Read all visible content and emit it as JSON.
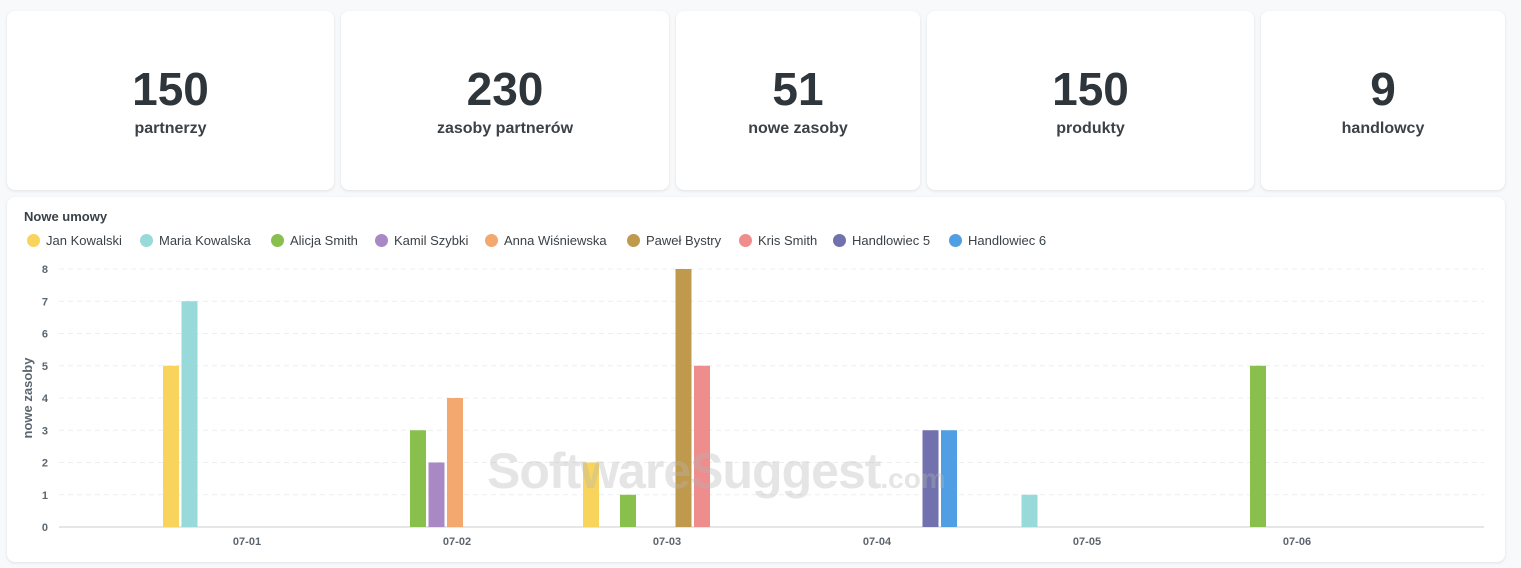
{
  "stats": [
    {
      "value": "150",
      "label": "partnerzy"
    },
    {
      "value": "230",
      "label": "zasoby partnerów"
    },
    {
      "value": "51",
      "label": "nowe zasoby"
    },
    {
      "value": "150",
      "label": "produkty"
    },
    {
      "value": "9",
      "label": "handlowcy"
    }
  ],
  "watermark": {
    "main": "SoftwareSuggest",
    "suffix": ".com"
  },
  "chart_data": {
    "type": "bar",
    "title": "Nowe umowy",
    "xlabel": "",
    "ylabel": "nowe zasoby",
    "ylim": [
      0,
      8
    ],
    "yticks": [
      "0",
      "1",
      "2",
      "3",
      "4",
      "5",
      "6",
      "7",
      "8"
    ],
    "grid": true,
    "legend_position": "top-left",
    "categories": [
      "07-01",
      "07-02",
      "07-03",
      "07-04",
      "07-05",
      "07-06"
    ],
    "series": [
      {
        "name": "Jan Kowalski",
        "color": "#f9d45c",
        "values": [
          5,
          0,
          2,
          0,
          0,
          0
        ]
      },
      {
        "name": "Maria Kowalska",
        "color": "#98d9d9",
        "values": [
          7,
          0,
          0,
          0,
          1,
          0
        ]
      },
      {
        "name": "Alicja Smith",
        "color": "#88bf4d",
        "values": [
          0,
          3,
          1,
          0,
          0,
          5
        ]
      },
      {
        "name": "Kamil Szybki",
        "color": "#a989c5",
        "values": [
          0,
          2,
          0,
          0,
          0,
          0
        ]
      },
      {
        "name": "Anna Wiśniewska",
        "color": "#f2a86f",
        "values": [
          0,
          4,
          0,
          0,
          0,
          0
        ]
      },
      {
        "name": "Paweł Bystry",
        "color": "#c09a4c",
        "values": [
          0,
          0,
          8,
          0,
          0,
          0
        ]
      },
      {
        "name": "Kris Smith",
        "color": "#ef8c8c",
        "values": [
          0,
          0,
          5,
          0,
          0,
          0
        ]
      },
      {
        "name": "Handlowiec 5",
        "color": "#7172ad",
        "values": [
          0,
          0,
          0,
          3,
          0,
          0
        ]
      },
      {
        "name": "Handlowiec 6",
        "color": "#509ee3",
        "values": [
          0,
          0,
          0,
          3,
          0,
          0
        ]
      }
    ]
  }
}
